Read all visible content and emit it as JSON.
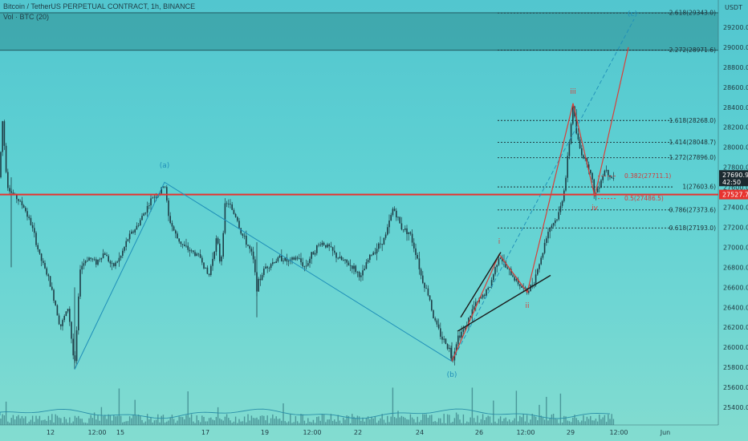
{
  "header": {
    "symbol_line": "Bitcoin / TetherUS PERPETUAL CONTRACT, 1h, BINANCE",
    "volume_line": "Vol · BTC (20)"
  },
  "price_axis": {
    "currency": "USDT",
    "ticks": [
      "29200.0",
      "29000.0",
      "28800.0",
      "28600.0",
      "28400.0",
      "28200.0",
      "28000.0",
      "27800.0",
      "27600.0",
      "27400.0",
      "27200.0",
      "27000.0",
      "26800.0",
      "26600.0",
      "26400.0",
      "26200.0",
      "26000.0",
      "25800.0",
      "25600.0",
      "25400.0"
    ],
    "current_price": "27690.9",
    "countdown": "42:50",
    "support_label": "27527.7"
  },
  "time_axis": {
    "ticks": [
      "12",
      "12:00",
      "15",
      "17",
      "19",
      "12:00",
      "22",
      "24",
      "26",
      "12:00",
      "29",
      "12:00",
      "Jun"
    ]
  },
  "fib_levels": [
    {
      "label": "2.618(29343.0)",
      "price": 29343.0,
      "style": "dotted",
      "color": "#1d2f35"
    },
    {
      "label": "2.272(28971.6)",
      "price": 28971.6,
      "style": "dotted",
      "color": "#1d2f35"
    },
    {
      "label": "1.618(28268.0)",
      "price": 28268.0,
      "style": "dotted",
      "color": "#1d2f35"
    },
    {
      "label": "1.414(28048.7)",
      "price": 28048.7,
      "style": "dotted",
      "color": "#1d2f35"
    },
    {
      "label": "1.272(27896.0)",
      "price": 27896.0,
      "style": "dotted",
      "color": "#1d2f35"
    },
    {
      "label": "0.382(27711.1)",
      "price": 27711.1,
      "style": "dotted",
      "color": "#d23a3a"
    },
    {
      "label": "1(27603.6)",
      "price": 27603.6,
      "style": "dotted",
      "color": "#1d2f35"
    },
    {
      "label": "0.5(27486.5)",
      "price": 27486.5,
      "style": "dotted",
      "color": "#d23a3a"
    },
    {
      "label": "0.786(27373.6)",
      "price": 27373.6,
      "style": "dotted",
      "color": "#1d2f35"
    },
    {
      "label": "0.618(27193.0)",
      "price": 27193.0,
      "style": "dotted",
      "color": "#1d2f35"
    }
  ],
  "wave_labels": {
    "a": "(a)",
    "b": "(b)",
    "c": "(c)",
    "i": "i",
    "ii": "ii",
    "iii": "iii",
    "iv": "iv"
  },
  "zones": {
    "resistance_top": 29345,
    "resistance_bottom": 28970,
    "support_price": 27527.7
  },
  "colors": {
    "background_top": "#52c6cf",
    "background_bottom": "#83dcd0",
    "candle": "#1e3d46",
    "resistance_zone": "#2f8f93",
    "support_line": "#e8332f",
    "wave_blue": "#1f8fb8",
    "wave_red": "#d8403a",
    "channel": "#1a1a1a"
  },
  "chart_data": {
    "type": "candlestick",
    "title": "Bitcoin / TetherUS PERPETUAL CONTRACT, 1h, BINANCE",
    "ylim": [
      25300,
      29400
    ],
    "price_path": [
      [
        0,
        27700
      ],
      [
        2,
        28200
      ],
      [
        4,
        28300
      ],
      [
        6,
        27900
      ],
      [
        10,
        27600
      ],
      [
        14,
        27550
      ],
      [
        20,
        27500
      ],
      [
        30,
        27400
      ],
      [
        40,
        27200
      ],
      [
        50,
        26900
      ],
      [
        60,
        26700
      ],
      [
        70,
        26400
      ],
      [
        75,
        26200
      ],
      [
        80,
        26300
      ],
      [
        85,
        26400
      ],
      [
        93,
        25780
      ],
      [
        100,
        26800
      ],
      [
        110,
        26900
      ],
      [
        120,
        26850
      ],
      [
        130,
        26950
      ],
      [
        140,
        26800
      ],
      [
        150,
        26900
      ],
      [
        160,
        27100
      ],
      [
        170,
        27200
      ],
      [
        180,
        27350
      ],
      [
        190,
        27500
      ],
      [
        200,
        27550
      ],
      [
        205,
        27650
      ],
      [
        210,
        27300
      ],
      [
        215,
        27200
      ],
      [
        220,
        27100
      ],
      [
        230,
        27000
      ],
      [
        240,
        26950
      ],
      [
        250,
        26900
      ],
      [
        255,
        26800
      ],
      [
        260,
        26700
      ],
      [
        265,
        26900
      ],
      [
        270,
        27100
      ],
      [
        275,
        26800
      ],
      [
        280,
        27400
      ],
      [
        285,
        27450
      ],
      [
        290,
        27350
      ],
      [
        295,
        27300
      ],
      [
        300,
        27150
      ],
      [
        310,
        27000
      ],
      [
        315,
        26900
      ],
      [
        320,
        26600
      ],
      [
        325,
        26700
      ],
      [
        330,
        26800
      ],
      [
        340,
        26850
      ],
      [
        350,
        26900
      ],
      [
        360,
        26850
      ],
      [
        370,
        26900
      ],
      [
        380,
        26800
      ],
      [
        390,
        26950
      ],
      [
        400,
        27050
      ],
      [
        410,
        27000
      ],
      [
        420,
        26900
      ],
      [
        430,
        26850
      ],
      [
        440,
        26800
      ],
      [
        450,
        26700
      ],
      [
        460,
        26900
      ],
      [
        470,
        27000
      ],
      [
        480,
        27100
      ],
      [
        490,
        27400
      ],
      [
        495,
        27300
      ],
      [
        500,
        27200
      ],
      [
        510,
        27150
      ],
      [
        520,
        26900
      ],
      [
        525,
        26700
      ],
      [
        530,
        26600
      ],
      [
        535,
        26500
      ],
      [
        540,
        26300
      ],
      [
        545,
        26200
      ],
      [
        550,
        26100
      ],
      [
        555,
        26050
      ],
      [
        560,
        25980
      ],
      [
        563,
        25860
      ],
      [
        570,
        26100
      ],
      [
        580,
        26200
      ],
      [
        590,
        26400
      ],
      [
        600,
        26500
      ],
      [
        610,
        26600
      ],
      [
        622,
        26930
      ],
      [
        630,
        26800
      ],
      [
        640,
        26700
      ],
      [
        650,
        26600
      ],
      [
        657,
        26550
      ],
      [
        665,
        26650
      ],
      [
        670,
        26800
      ],
      [
        675,
        26900
      ],
      [
        680,
        27100
      ],
      [
        685,
        27200
      ],
      [
        690,
        27250
      ],
      [
        695,
        27300
      ],
      [
        700,
        27450
      ],
      [
        705,
        27700
      ],
      [
        710,
        28100
      ],
      [
        714,
        28440
      ],
      [
        718,
        28150
      ],
      [
        722,
        28000
      ],
      [
        727,
        27900
      ],
      [
        732,
        27850
      ],
      [
        737,
        27700
      ],
      [
        741,
        27510
      ],
      [
        745,
        27600
      ],
      [
        750,
        27700
      ],
      [
        755,
        27800
      ],
      [
        760,
        27720
      ],
      [
        765,
        27690
      ]
    ]
  }
}
